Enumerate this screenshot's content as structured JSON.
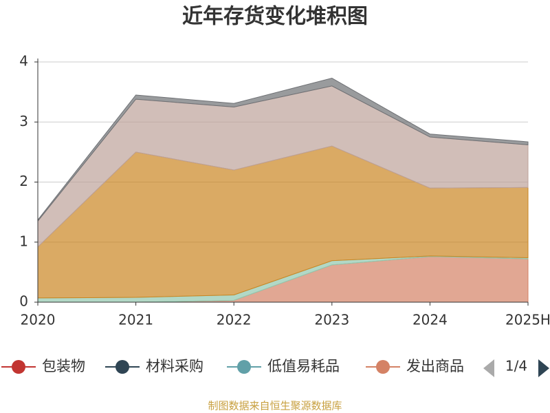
{
  "chart_data": {
    "type": "stacked_area",
    "title": "近年存货变化堆积图",
    "categories": [
      "2020",
      "2021",
      "2022",
      "2023",
      "2024",
      "2025H"
    ],
    "ylim": [
      0,
      4
    ],
    "yticks": [
      0,
      1,
      2,
      3,
      4
    ],
    "grid": true,
    "series": [
      {
        "name": "包装物",
        "color": "#c23531",
        "values": [
          0,
          0,
          0,
          0,
          0,
          0
        ]
      },
      {
        "name": "材料采购",
        "color": "#2f4554",
        "values": [
          0,
          0,
          0,
          0,
          0,
          0
        ]
      },
      {
        "name": "低值易耗品",
        "color": "#61a0a8",
        "values": [
          0,
          0,
          0,
          0,
          0,
          0
        ]
      },
      {
        "name": "发出商品",
        "color": "#d48265",
        "values": [
          0,
          0,
          0.03,
          0.62,
          0.76,
          0.72
        ]
      },
      {
        "color": "#91c7ae",
        "values": [
          0.07,
          0.08,
          0.09,
          0.07,
          0.01,
          0.02
        ]
      },
      {
        "color": "#ca8622",
        "values": [
          0.85,
          2.42,
          2.08,
          1.91,
          1.13,
          1.17
        ]
      },
      {
        "color": "#bda29a",
        "values": [
          0.43,
          0.88,
          1.05,
          1.0,
          0.85,
          0.71
        ]
      },
      {
        "color": "#6e7074",
        "values": [
          0.02,
          0.07,
          0.06,
          0.13,
          0.05,
          0.05
        ]
      }
    ],
    "legend_page": "1/4",
    "source": "制图数据来自恒生聚源数据库"
  }
}
